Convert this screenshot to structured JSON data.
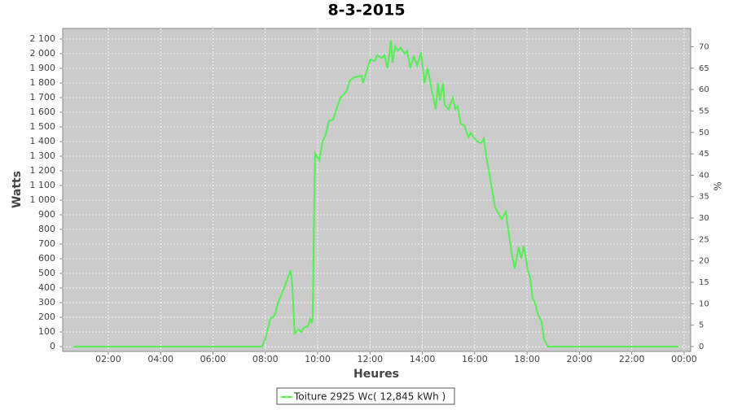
{
  "chart_data": {
    "type": "line",
    "title": "8-3-2015",
    "xlabel": "Heures",
    "ylabel": "Watts",
    "y2label": "%",
    "x": [
      0.66,
      7.88,
      8.01,
      8.19,
      8.35,
      8.51,
      8.72,
      8.88,
      8.97,
      9.03,
      9.1,
      9.13,
      9.28,
      9.37,
      9.47,
      9.63,
      9.72,
      9.78,
      9.81,
      9.84,
      9.9,
      10.06,
      10.19,
      10.31,
      10.43,
      10.59,
      10.68,
      10.87,
      11.09,
      11.24,
      11.43,
      11.68,
      11.74,
      11.9,
      12.02,
      12.18,
      12.27,
      12.45,
      12.55,
      12.67,
      12.8,
      12.86,
      12.96,
      13.05,
      13.17,
      13.33,
      13.42,
      13.54,
      13.67,
      13.8,
      13.95,
      14.08,
      14.2,
      14.36,
      14.51,
      14.6,
      14.67,
      14.79,
      14.85,
      15.01,
      15.16,
      15.26,
      15.35,
      15.47,
      15.6,
      15.76,
      15.85,
      16.0,
      16.1,
      16.25,
      16.35,
      16.44,
      16.59,
      16.78,
      16.94,
      17.03,
      17.19,
      17.28,
      17.43,
      17.53,
      17.68,
      17.78,
      17.87,
      18.03,
      18.12,
      18.21,
      18.3,
      18.4,
      18.55,
      18.65,
      18.8,
      23.8
    ],
    "series": [
      {
        "name": "Toiture 2925 Wc( 12,845 kWh )",
        "color": "#55ee55",
        "values": [
          0,
          0,
          60,
          190,
          210,
          310,
          400,
          480,
          520,
          420,
          150,
          90,
          120,
          100,
          130,
          140,
          190,
          160,
          200,
          600,
          1320,
          1270,
          1400,
          1450,
          1540,
          1550,
          1600,
          1700,
          1740,
          1820,
          1840,
          1850,
          1800,
          1900,
          1960,
          1950,
          1990,
          1970,
          1990,
          1900,
          2090,
          1940,
          2050,
          2020,
          2040,
          2000,
          2020,
          1900,
          1980,
          1920,
          2010,
          1800,
          1900,
          1750,
          1620,
          1800,
          1680,
          1800,
          1650,
          1620,
          1700,
          1620,
          1640,
          1520,
          1510,
          1430,
          1460,
          1420,
          1400,
          1390,
          1420,
          1300,
          1150,
          950,
          900,
          870,
          920,
          800,
          620,
          530,
          680,
          600,
          690,
          520,
          470,
          330,
          300,
          230,
          170,
          50,
          0,
          0
        ]
      }
    ],
    "xlim": [
      0.26,
      24.25
    ],
    "xticks": [
      {
        "value": 2,
        "label": "02:00"
      },
      {
        "value": 4,
        "label": "04:00"
      },
      {
        "value": 6,
        "label": "06:00"
      },
      {
        "value": 8,
        "label": "08:00"
      },
      {
        "value": 10,
        "label": "10:00"
      },
      {
        "value": 12,
        "label": "12:00"
      },
      {
        "value": 14,
        "label": "14:00"
      },
      {
        "value": 16,
        "label": "16:00"
      },
      {
        "value": 18,
        "label": "18:00"
      },
      {
        "value": 20,
        "label": "20:00"
      },
      {
        "value": 22,
        "label": "22:00"
      },
      {
        "value": 24,
        "label": "00:00"
      }
    ],
    "ylim": [
      -33,
      2172
    ],
    "yticks": [
      0,
      100,
      200,
      300,
      400,
      500,
      600,
      700,
      800,
      900,
      {
        "value": 1000,
        "label": "1 000"
      },
      {
        "value": 1100,
        "label": "1 100"
      },
      {
        "value": 1200,
        "label": "1 200"
      },
      {
        "value": 1300,
        "label": "1 300"
      },
      {
        "value": 1400,
        "label": "1 400"
      },
      {
        "value": 1500,
        "label": "1 500"
      },
      {
        "value": 1600,
        "label": "1 600"
      },
      {
        "value": 1700,
        "label": "1 700"
      },
      {
        "value": 1800,
        "label": "1 800"
      },
      {
        "value": 1900,
        "label": "1 900"
      },
      {
        "value": 2000,
        "label": "2 000"
      },
      {
        "value": 2100,
        "label": "2 100"
      }
    ],
    "y2lim": [
      -1.13,
      74.26
    ],
    "y2ticks": [
      0,
      5,
      10,
      15,
      20,
      25,
      30,
      35,
      40,
      45,
      50,
      55,
      60,
      65,
      70
    ],
    "grid": true
  }
}
